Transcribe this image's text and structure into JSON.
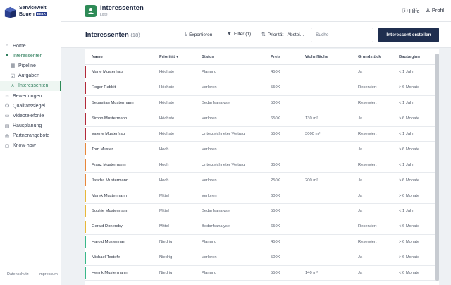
{
  "brand": {
    "line1": "Servicewelt",
    "line2": "Bouen",
    "badge": "BETA"
  },
  "nav": {
    "items": [
      {
        "label": "Home",
        "icon": "home-icon",
        "glyph": "⌂"
      },
      {
        "label": "Interessenten",
        "icon": "flag-icon",
        "glyph": "⚑"
      },
      {
        "label": "Pipeline",
        "icon": "grid-icon",
        "glyph": "▦"
      },
      {
        "label": "Aufgaben",
        "icon": "check-icon",
        "glyph": "☑"
      },
      {
        "label": "Interessenten",
        "icon": "user-icon",
        "glyph": "♙"
      },
      {
        "label": "Bewertungen",
        "icon": "people-icon",
        "glyph": "☺"
      },
      {
        "label": "Qualitätssiegel",
        "icon": "seal-icon",
        "glyph": "✪"
      },
      {
        "label": "Videotelefonie",
        "icon": "monitor-icon",
        "glyph": "▭"
      },
      {
        "label": "Hausplanung",
        "icon": "plan-icon",
        "glyph": "▤"
      },
      {
        "label": "Partnerangebote",
        "icon": "partner-icon",
        "glyph": "◎"
      },
      {
        "label": "Know-how",
        "icon": "book-icon",
        "glyph": "▢"
      }
    ]
  },
  "footer": {
    "datenschutz": "Datenschutz",
    "impressum": "Impressum"
  },
  "header": {
    "app_title": "Interessenten",
    "app_subtitle": "Liste",
    "help": "Hilfe",
    "profile": "Profil"
  },
  "toolbar": {
    "title": "Interessenten",
    "count": "(18)",
    "export": "Exportieren",
    "filter": "Filter (1)",
    "sort": "Priorität - Abstei...",
    "search_placeholder": "Suche",
    "create": "Interessent erstellen"
  },
  "table": {
    "columns": {
      "name": "Name",
      "prio": "Priorität",
      "status": "Status",
      "preis": "Preis",
      "wohn": "Wohnfläche",
      "grund": "Grundstück",
      "bau": "Baubeginn"
    },
    "rows": [
      {
        "name": "Marie Musterfrau",
        "prio": "Höchste",
        "status": "Planung",
        "preis": "450K",
        "wohn": "",
        "grund": "Ja",
        "bau": "< 1 Jahr",
        "color": "#b22a3a"
      },
      {
        "name": "Roger Rabbit",
        "prio": "Höchste",
        "status": "Verloren",
        "preis": "550K",
        "wohn": "",
        "grund": "Reserviert",
        "bau": "> 6 Monate",
        "color": "#b22a3a"
      },
      {
        "name": "Sebastian Mustermann",
        "prio": "Höchste",
        "status": "Bedarfsanalyse",
        "preis": "500K",
        "wohn": "",
        "grund": "Reserviert",
        "bau": "< 1 Jahr",
        "color": "#b22a3a"
      },
      {
        "name": "Simon Mustermann",
        "prio": "Höchste",
        "status": "Verloren",
        "preis": "650K",
        "wohn": "130 m²",
        "grund": "Ja",
        "bau": "> 6 Monate",
        "color": "#b22a3a"
      },
      {
        "name": "Valerie Musterfrau",
        "prio": "Höchste",
        "status": "Unterzeichneter Vertrag",
        "preis": "550K",
        "wohn": "3000 m²",
        "grund": "Reserviert",
        "bau": "< 1 Jahr",
        "color": "#b22a3a"
      },
      {
        "name": "Tom Muster",
        "prio": "Hoch",
        "status": "Verloren",
        "preis": "",
        "wohn": "",
        "grund": "Ja",
        "bau": "> 6 Monate",
        "color": "#e8873a"
      },
      {
        "name": "Franz Mustermann",
        "prio": "Hoch",
        "status": "Unterzeichneter Vertrag",
        "preis": "350K",
        "wohn": "",
        "grund": "Reserviert",
        "bau": "< 1 Jahr",
        "color": "#e8873a"
      },
      {
        "name": "Jascha Mustermann",
        "prio": "Hoch",
        "status": "Verloren",
        "preis": "250K",
        "wohn": "200 m²",
        "grund": "Ja",
        "bau": "> 6 Monate",
        "color": "#e8873a"
      },
      {
        "name": "Marek Mustermann",
        "prio": "Mittel",
        "status": "Verloren",
        "preis": "600K",
        "wohn": "",
        "grund": "Ja",
        "bau": "> 6 Monate",
        "color": "#e8b83a"
      },
      {
        "name": "Sophie Mustermann",
        "prio": "Mittel",
        "status": "Bedarfsanalyse",
        "preis": "550K",
        "wohn": "",
        "grund": "Ja",
        "bau": "< 1 Jahr",
        "color": "#e8b83a"
      },
      {
        "name": "Gerald Donersby",
        "prio": "Mittel",
        "status": "Bedarfsanalyse",
        "preis": "650K",
        "wohn": "",
        "grund": "Reserviert",
        "bau": "< 6 Monate",
        "color": "#e8b83a"
      },
      {
        "name": "Harold Musterman",
        "prio": "Niedrig",
        "status": "Planung",
        "preis": "450K",
        "wohn": "",
        "grund": "Reserviert",
        "bau": "> 6 Monate",
        "color": "#3ab88a"
      },
      {
        "name": "Michael Testefe",
        "prio": "Niedrig",
        "status": "Verloren",
        "preis": "500K",
        "wohn": "",
        "grund": "Ja",
        "bau": "> 6 Monate",
        "color": "#3ab88a"
      },
      {
        "name": "Henrik Mustermann",
        "prio": "Niedrig",
        "status": "Planung",
        "preis": "550K",
        "wohn": "140 m²",
        "grund": "Ja",
        "bau": "< 6 Monate",
        "color": "#3ab88a"
      }
    ]
  },
  "colors": {
    "accent": "#2e8b57",
    "primary": "#1f2e4f"
  }
}
